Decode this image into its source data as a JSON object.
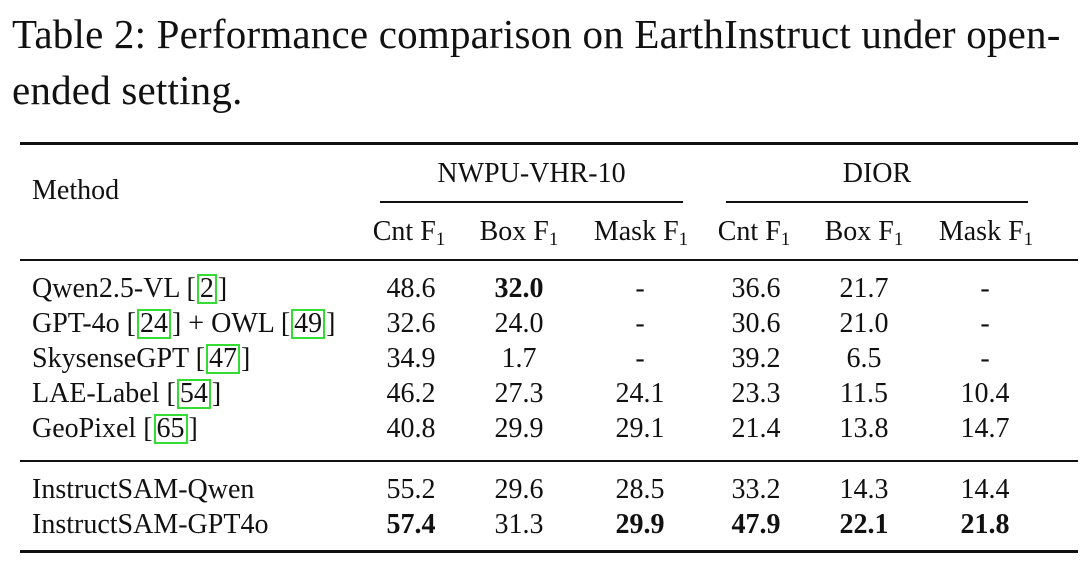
{
  "caption": "Table 2: Performance comparison on EarthInstruct under open-ended setting.",
  "header": {
    "method": "Method",
    "groups": [
      "NWPU-VHR-10",
      "DIOR"
    ],
    "subcolumns": [
      "Cnt F",
      "Box F",
      "Mask F"
    ],
    "subscript": "1"
  },
  "rows": [
    {
      "name": "Qwen2.5-VL [",
      "cite": "2",
      "suffix": "]",
      "values": [
        "48.6",
        "32.0",
        "-",
        "36.6",
        "21.7",
        "-"
      ],
      "bold": [
        false,
        true,
        false,
        false,
        false,
        false
      ]
    },
    {
      "name": "GPT-4o [",
      "cite": "24",
      "mid": "] + OWL [",
      "cite2": "49",
      "suffix": "]",
      "values": [
        "32.6",
        "24.0",
        "-",
        "30.6",
        "21.0",
        "-"
      ],
      "bold": [
        false,
        false,
        false,
        false,
        false,
        false
      ]
    },
    {
      "name": "SkysenseGPT [",
      "cite": "47",
      "suffix": "]",
      "values": [
        "34.9",
        "1.7",
        "-",
        "39.2",
        "6.5",
        "-"
      ],
      "bold": [
        false,
        false,
        false,
        false,
        false,
        false
      ]
    },
    {
      "name": "LAE-Label [",
      "cite": "54",
      "suffix": "]",
      "values": [
        "46.2",
        "27.3",
        "24.1",
        "23.3",
        "11.5",
        "10.4"
      ],
      "bold": [
        false,
        false,
        false,
        false,
        false,
        false
      ]
    },
    {
      "name": "GeoPixel [",
      "cite": "65",
      "suffix": "]",
      "values": [
        "40.8",
        "29.9",
        "29.1",
        "21.4",
        "13.8",
        "14.7"
      ],
      "bold": [
        false,
        false,
        false,
        false,
        false,
        false
      ]
    },
    {
      "name": "InstructSAM-Qwen",
      "values": [
        "55.2",
        "29.6",
        "28.5",
        "33.2",
        "14.3",
        "14.4"
      ],
      "bold": [
        false,
        false,
        false,
        false,
        false,
        false
      ]
    },
    {
      "name": "InstructSAM-GPT4o",
      "values": [
        "57.4",
        "31.3",
        "29.9",
        "47.9",
        "22.1",
        "21.8"
      ],
      "bold": [
        true,
        false,
        true,
        true,
        true,
        true
      ]
    }
  ]
}
